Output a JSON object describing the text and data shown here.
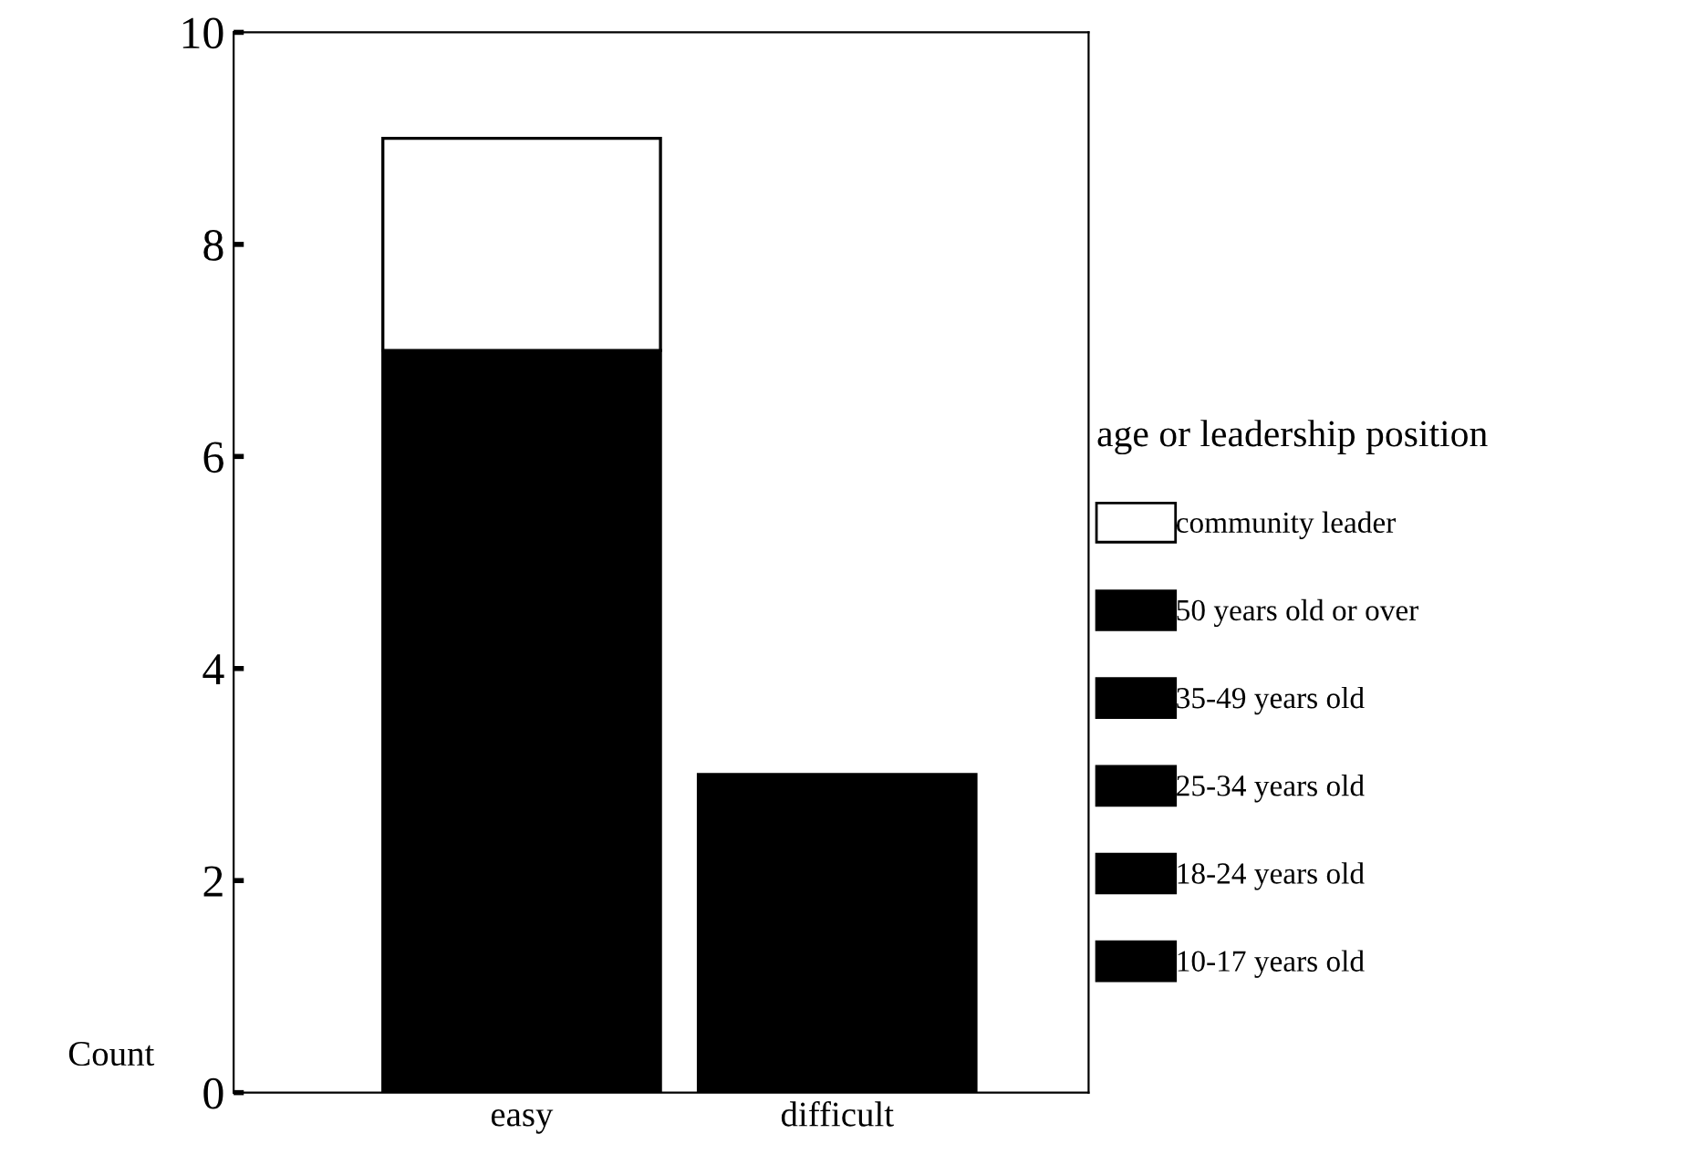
{
  "chart_data": {
    "type": "bar",
    "stacked": true,
    "ylabel": "Count",
    "legend_title": "age or leadership position",
    "categories": [
      "easy",
      "difficult"
    ],
    "series": [
      {
        "name": "10-17 years old",
        "color": "#000000",
        "values": [
          0,
          0
        ]
      },
      {
        "name": "18-24 years old",
        "color": "#000000",
        "values": [
          0,
          0
        ]
      },
      {
        "name": "25-34 years old",
        "color": "#000000",
        "values": [
          0,
          0
        ]
      },
      {
        "name": "35-49 years old",
        "color": "#000000",
        "values": [
          0,
          0
        ]
      },
      {
        "name": "50 years old or over",
        "color": "#000000",
        "values": [
          7,
          3
        ]
      },
      {
        "name": "community leader",
        "color": "#ffffff",
        "values": [
          2,
          0
        ]
      }
    ],
    "ylim": [
      0,
      10
    ],
    "yticks": [
      0,
      2,
      4,
      6,
      8,
      10
    ],
    "grid": false,
    "legend": "right"
  }
}
